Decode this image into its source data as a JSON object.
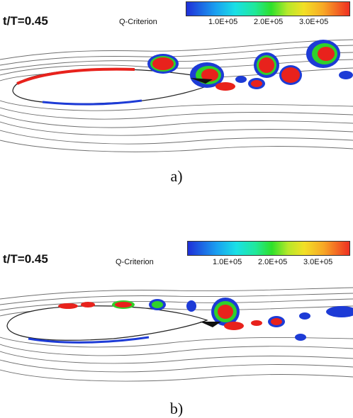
{
  "panels": [
    {
      "time_label": "t/T=0.45",
      "legend_title": "Q-Criterion",
      "tick_labels": [
        "1.0E+05",
        "2.0E+05",
        "3.0E+05"
      ],
      "caption": "a)"
    },
    {
      "time_label": "t/T=0.45",
      "legend_title": "Q-Criterion",
      "tick_labels": [
        "1.0E+05",
        "2.0E+05",
        "3.0E+05"
      ],
      "caption": "b)"
    }
  ],
  "colors": {
    "streamline": "#6e6e6e",
    "vortex_core": "#e8221c",
    "vortex_mid": "#2fd12a",
    "vortex_outer": "#1d3bd6",
    "airfoil": "#ffffff"
  }
}
